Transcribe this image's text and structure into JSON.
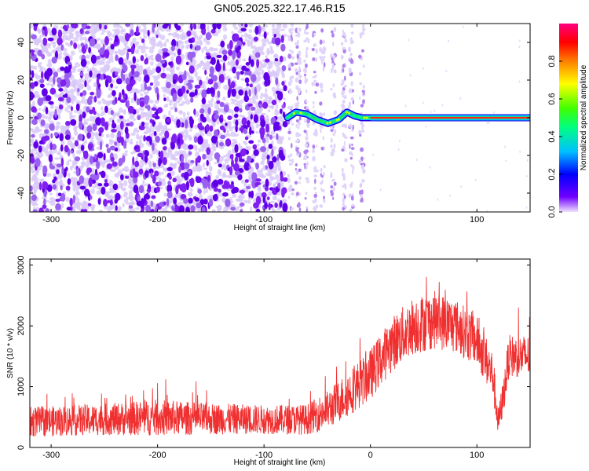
{
  "title": "GN05.2025.322.17.46.R15",
  "colors": {
    "signal": "#f03030",
    "scatter": "#7000f0",
    "scatter_light": "#d8c8f8"
  },
  "chart_data": [
    {
      "type": "heatmap",
      "title": "GN05.2025.322.17.46.R15",
      "xlabel": "Height of straight line (km)",
      "ylabel": "Frequency (Hz)",
      "xlim": [
        -320,
        150
      ],
      "ylim": [
        -50,
        50
      ],
      "xticks": [
        -300,
        -200,
        -100,
        0,
        100
      ],
      "yticks": [
        -40,
        -20,
        0,
        20,
        40
      ],
      "colorbar": {
        "label": "Normalized spectral amplitude",
        "range": [
          0,
          1
        ],
        "ticks": [
          0.0,
          0.2,
          0.4,
          0.6,
          0.8
        ],
        "tick_labels": [
          "0.0",
          "0.2",
          "0.4",
          "0.6",
          "0.8"
        ],
        "colormap": [
          "#e0c0ff",
          "#7000ff",
          "#0000ff",
          "#00c0ff",
          "#00ff80",
          "#40ff00",
          "#ffff00",
          "#ff8000",
          "#ff0000",
          "#ff0080"
        ]
      },
      "noise_region_x": [
        -320,
        -80
      ],
      "sparse_region_x": [
        -80,
        0
      ],
      "trace": {
        "x": [
          -78,
          -70,
          -60,
          -50,
          -40,
          -30,
          -22,
          -15,
          -8,
          0,
          20,
          50,
          100,
          150
        ],
        "y": [
          0,
          3,
          2,
          -1,
          -3,
          -1,
          3,
          1,
          0,
          0,
          0,
          0,
          0,
          0
        ]
      }
    },
    {
      "type": "line",
      "xlabel": "Height of straight line (km)",
      "ylabel": "SNR (10 * v/v)",
      "xlim": [
        -320,
        150
      ],
      "ylim": [
        0,
        3100
      ],
      "xticks": [
        -300,
        -200,
        -100,
        0,
        100
      ],
      "yticks": [
        0,
        1000,
        2000,
        3000
      ],
      "series": [
        {
          "name": "SNR",
          "color": "#f03030",
          "envelope": {
            "x": [
              -320,
              -300,
              -250,
              -200,
              -150,
              -100,
              -60,
              -40,
              -20,
              0,
              20,
              40,
              60,
              80,
              100,
              115,
              120,
              125,
              130,
              140,
              150
            ],
            "mean": [
              420,
              430,
              460,
              490,
              470,
              460,
              460,
              620,
              900,
              1200,
              1700,
              2000,
              2100,
              2000,
              1750,
              1200,
              400,
              850,
              1500,
              1500,
              1500
            ],
            "spread": [
              250,
              250,
              260,
              300,
              260,
              240,
              250,
              320,
              380,
              420,
              450,
              480,
              480,
              450,
              420,
              380,
              250,
              300,
              350,
              350,
              350
            ]
          }
        }
      ]
    }
  ]
}
